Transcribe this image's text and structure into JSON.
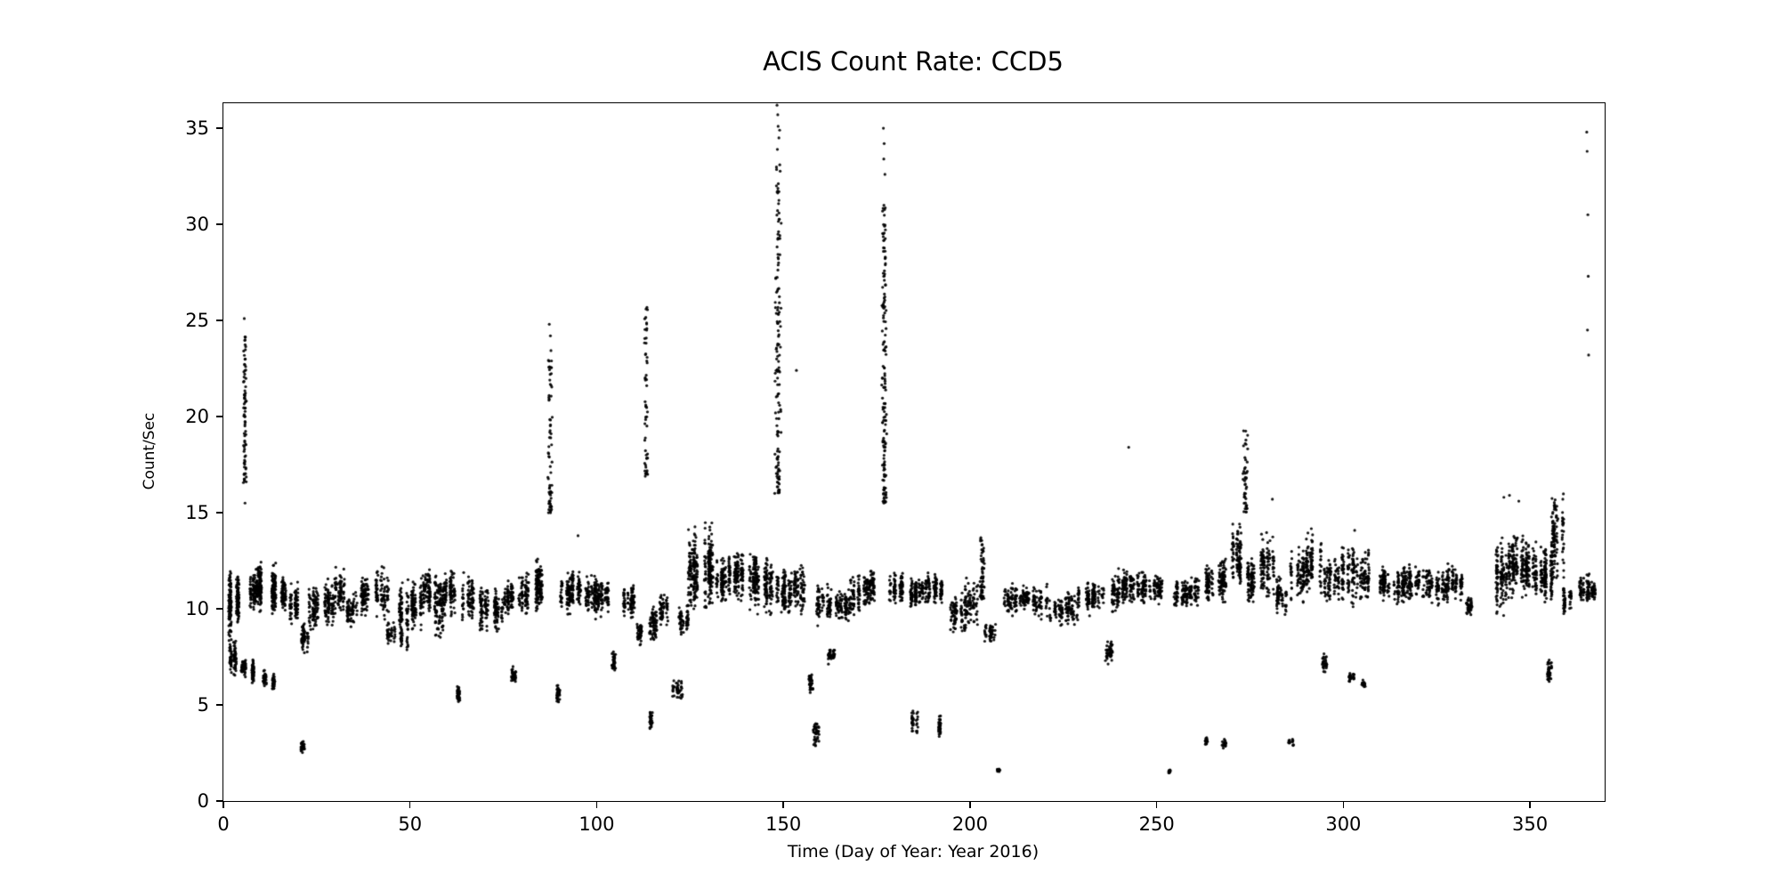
{
  "chart_data": {
    "type": "scatter",
    "title": "ACIS Count Rate: CCD5",
    "xlabel": "Time (Day of Year: Year 2016)",
    "ylabel": "Count/Sec",
    "xlim": [
      0,
      370
    ],
    "ylim": [
      0,
      36.3
    ],
    "xticks": [
      0,
      50,
      100,
      150,
      200,
      250,
      300,
      350
    ],
    "yticks": [
      0,
      5,
      10,
      15,
      20,
      25,
      30,
      35
    ],
    "grid": false,
    "legend": "none",
    "marker_color": "#000000",
    "background_color": "#ffffff",
    "seed": 42,
    "bands": [
      [
        1,
        2.5,
        8,
        12.5,
        120
      ],
      [
        1.5,
        4,
        6.2,
        8.5,
        80
      ],
      [
        3,
        5,
        9,
        12,
        100
      ],
      [
        4.5,
        6,
        6.3,
        7.6,
        50
      ],
      [
        6.5,
        8,
        6,
        7.5,
        60
      ],
      [
        7,
        9,
        9.5,
        12.3,
        90
      ],
      [
        9,
        11,
        9.5,
        12.8,
        110
      ],
      [
        10,
        11.5,
        5.8,
        7,
        40
      ],
      [
        12,
        14,
        9.3,
        12.6,
        110
      ],
      [
        13,
        14,
        5.5,
        6.8,
        35
      ],
      [
        15,
        17,
        9.5,
        12,
        70
      ],
      [
        18,
        20,
        9,
        11.5,
        80
      ],
      [
        20.5,
        21.5,
        2.4,
        3.2,
        25
      ],
      [
        21,
        23,
        7.5,
        9.5,
        60
      ],
      [
        23,
        26,
        8.5,
        11.5,
        90
      ],
      [
        27,
        30,
        8.8,
        11.8,
        90
      ],
      [
        30,
        33,
        9.5,
        12.3,
        80
      ],
      [
        33,
        36,
        8.8,
        11.2,
        70
      ],
      [
        37,
        40,
        9.5,
        12,
        80
      ],
      [
        41,
        44,
        9.3,
        12.5,
        90
      ],
      [
        44,
        46,
        8,
        9.5,
        40
      ],
      [
        47,
        50,
        7,
        12,
        100
      ],
      [
        50,
        53,
        8.5,
        12,
        100
      ],
      [
        53,
        56,
        9.5,
        12.2,
        90
      ],
      [
        56,
        59,
        8,
        12.5,
        110
      ],
      [
        59,
        62,
        9.5,
        12.2,
        100
      ],
      [
        62,
        64,
        4.8,
        6.2,
        45
      ],
      [
        64,
        67,
        9,
        12,
        90
      ],
      [
        68,
        71,
        8.5,
        11.5,
        80
      ],
      [
        72,
        75,
        8.7,
        11.3,
        80
      ],
      [
        75,
        78,
        9.2,
        11.8,
        80
      ],
      [
        77,
        79,
        6,
        7.2,
        35
      ],
      [
        79,
        82,
        9.3,
        12,
        80
      ],
      [
        82,
        86,
        9.5,
        13,
        130
      ],
      [
        88,
        90,
        4.8,
        6.5,
        40
      ],
      [
        90,
        93,
        9.5,
        12,
        80
      ],
      [
        93,
        96,
        9.8,
        12.2,
        80
      ],
      [
        96,
        100,
        9.3,
        12,
        100
      ],
      [
        100,
        104,
        9.5,
        11.8,
        90
      ],
      [
        104,
        106,
        6.5,
        8,
        40
      ],
      [
        106,
        110,
        9.3,
        11.5,
        90
      ],
      [
        110,
        112,
        8,
        9.5,
        50
      ],
      [
        113,
        115,
        3.5,
        5,
        30
      ],
      [
        114,
        117,
        8,
        10.5,
        70
      ],
      [
        117,
        120,
        9,
        11,
        60
      ],
      [
        120,
        123,
        5,
        6.5,
        45
      ],
      [
        122,
        125,
        8.3,
        10.5,
        60
      ],
      [
        124,
        128,
        9.5,
        14.5,
        150
      ],
      [
        128,
        132,
        9.5,
        14.7,
        150
      ],
      [
        132,
        135,
        10,
        13,
        100
      ],
      [
        135,
        139,
        10,
        13.3,
        120
      ],
      [
        139,
        143,
        9.8,
        13.5,
        120
      ],
      [
        143,
        147,
        9.5,
        13,
        120
      ],
      [
        148,
        152,
        9.3,
        12.5,
        110
      ],
      [
        152,
        156,
        9.5,
        12.5,
        100
      ],
      [
        156,
        158,
        5.5,
        6.8,
        40
      ],
      [
        157.5,
        159.5,
        2.5,
        4.5,
        40
      ],
      [
        159,
        163,
        9,
        11.5,
        90
      ],
      [
        162,
        164,
        7,
        8.2,
        35
      ],
      [
        164,
        168,
        9,
        11.3,
        90
      ],
      [
        168,
        172,
        9.5,
        12,
        90
      ],
      [
        172,
        175,
        10,
        12.3,
        90
      ],
      [
        178,
        182,
        10,
        12.2,
        90
      ],
      [
        183,
        186,
        9.8,
        11.8,
        80
      ],
      [
        184.5,
        186,
        3.2,
        5,
        35
      ],
      [
        186,
        190,
        10,
        12,
        80
      ],
      [
        190,
        194,
        10,
        12,
        80
      ],
      [
        191.5,
        193,
        3.2,
        4.6,
        40
      ],
      [
        194,
        198,
        8.5,
        11,
        80
      ],
      [
        198,
        202,
        8,
        12,
        90
      ],
      [
        204,
        207,
        8,
        9.5,
        50
      ],
      [
        207.5,
        208.5,
        1.4,
        1.8,
        18
      ],
      [
        209,
        213,
        9.5,
        11.5,
        70
      ],
      [
        213,
        217,
        9.8,
        11.3,
        60
      ],
      [
        217,
        221,
        9.3,
        11.5,
        70
      ],
      [
        221,
        225,
        9,
        10.8,
        60
      ],
      [
        225,
        229,
        8.8,
        11.3,
        70
      ],
      [
        229,
        233,
        9.5,
        11.8,
        70
      ],
      [
        233,
        236,
        9.8,
        11.5,
        60
      ],
      [
        235,
        238,
        7,
        8.5,
        50
      ],
      [
        238,
        241,
        9.5,
        12.2,
        80
      ],
      [
        241,
        245,
        10,
        12.4,
        90
      ],
      [
        245,
        249,
        10,
        12.2,
        80
      ],
      [
        249,
        252,
        10.2,
        12,
        70
      ],
      [
        253,
        254,
        1.4,
        1.7,
        14
      ],
      [
        254,
        258,
        9.8,
        11.8,
        80
      ],
      [
        258,
        262,
        10,
        11.8,
        80
      ],
      [
        262.5,
        263.5,
        2.8,
        3.4,
        18
      ],
      [
        263,
        266,
        10,
        12.5,
        80
      ],
      [
        266,
        270,
        10,
        13,
        90
      ],
      [
        267.5,
        268.5,
        2.6,
        3.3,
        18
      ],
      [
        270,
        273,
        10.5,
        14.8,
        100
      ],
      [
        274,
        278,
        10,
        13,
        90
      ],
      [
        278,
        282,
        10,
        14.5,
        110
      ],
      [
        282,
        285,
        9.5,
        12,
        70
      ],
      [
        285.5,
        286.5,
        2.8,
        3.3,
        16
      ],
      [
        286,
        290,
        9.8,
        13.5,
        90
      ],
      [
        290,
        294,
        10,
        14.5,
        110
      ],
      [
        294.5,
        295.5,
        6.5,
        7.8,
        30
      ],
      [
        295,
        299,
        9.8,
        13,
        90
      ],
      [
        299,
        303,
        9.5,
        14.3,
        100
      ],
      [
        301.5,
        303,
        6,
        6.8,
        25
      ],
      [
        303,
        307,
        9.8,
        13.5,
        90
      ],
      [
        305,
        306,
        5.8,
        6.4,
        20
      ],
      [
        308,
        312,
        10.3,
        12.5,
        80
      ],
      [
        312,
        316,
        10,
        12.3,
        80
      ],
      [
        316,
        320,
        10,
        12.6,
        90
      ],
      [
        320,
        324,
        10.2,
        12.4,
        80
      ],
      [
        324,
        328,
        10,
        12.2,
        80
      ],
      [
        328,
        332,
        10.3,
        12.5,
        80
      ],
      [
        333,
        335,
        9.5,
        10.8,
        40
      ],
      [
        340,
        344,
        9.3,
        14,
        120
      ],
      [
        344,
        348,
        10,
        14.5,
        130
      ],
      [
        348,
        352,
        10,
        14,
        130
      ],
      [
        352,
        356,
        10,
        13.5,
        140
      ],
      [
        354,
        356,
        6,
        7.6,
        40
      ],
      [
        356,
        359,
        10.5,
        16.5,
        120
      ],
      [
        359,
        361,
        9.5,
        11.5,
        50
      ],
      [
        363,
        366,
        10,
        12,
        70
      ],
      [
        366,
        368,
        10.3,
        11.5,
        40
      ]
    ],
    "columns": [
      [
        5.3,
        6.2,
        16.5,
        24.2,
        80
      ],
      [
        86.8,
        88.2,
        15,
        23.5,
        70
      ],
      [
        112.6,
        113.8,
        16.8,
        25.8,
        55
      ],
      [
        147.6,
        149.6,
        16,
        33.5,
        140
      ],
      [
        176.3,
        177.7,
        15.5,
        31,
        150
      ],
      [
        202.5,
        204,
        10.5,
        14,
        60
      ],
      [
        273,
        274.5,
        15,
        19.5,
        45
      ]
    ],
    "points": [
      [
        5.6,
        25.1
      ],
      [
        5.8,
        15.5
      ],
      [
        87.3,
        24.8
      ],
      [
        87.6,
        24.2
      ],
      [
        95,
        13.8
      ],
      [
        148.3,
        36.2
      ],
      [
        148.5,
        35.7
      ],
      [
        148.6,
        35.1
      ],
      [
        148.8,
        34.5
      ],
      [
        148.4,
        33.9
      ],
      [
        149,
        34.9
      ],
      [
        153.5,
        22.4
      ],
      [
        176.8,
        35.0
      ],
      [
        177.0,
        34.2
      ],
      [
        176.9,
        33.4
      ],
      [
        177.2,
        32.6
      ],
      [
        242.5,
        18.4
      ],
      [
        281,
        15.7
      ],
      [
        343,
        15.8
      ],
      [
        344.5,
        15.9
      ],
      [
        347,
        15.6
      ],
      [
        365.2,
        34.8
      ],
      [
        365.3,
        33.8
      ],
      [
        365.5,
        30.5
      ],
      [
        365.6,
        27.3
      ],
      [
        365.4,
        24.5
      ],
      [
        365.7,
        23.2
      ]
    ]
  }
}
